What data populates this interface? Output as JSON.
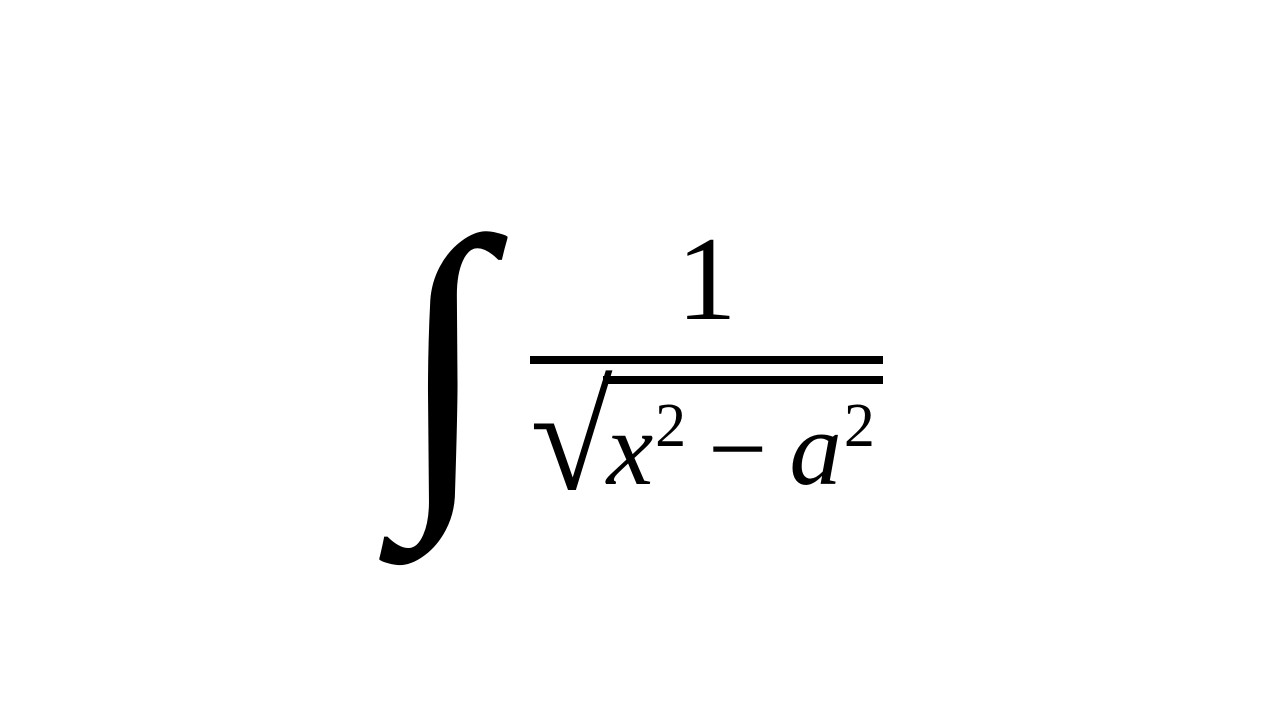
{
  "formula": {
    "type": "integral-expression",
    "integral_symbol": "∫",
    "numerator": "1",
    "sqrt_symbol": "√",
    "var1": "x",
    "exp1": "2",
    "operator": "−",
    "var2": "a",
    "exp2": "2",
    "text_color": "#000000",
    "background_color": "#ffffff",
    "base_fontsize": 120,
    "integral_fontsize": 340,
    "radicand_fontsize": 105,
    "superscript_fontsize": 62,
    "bar_thickness": 8
  }
}
